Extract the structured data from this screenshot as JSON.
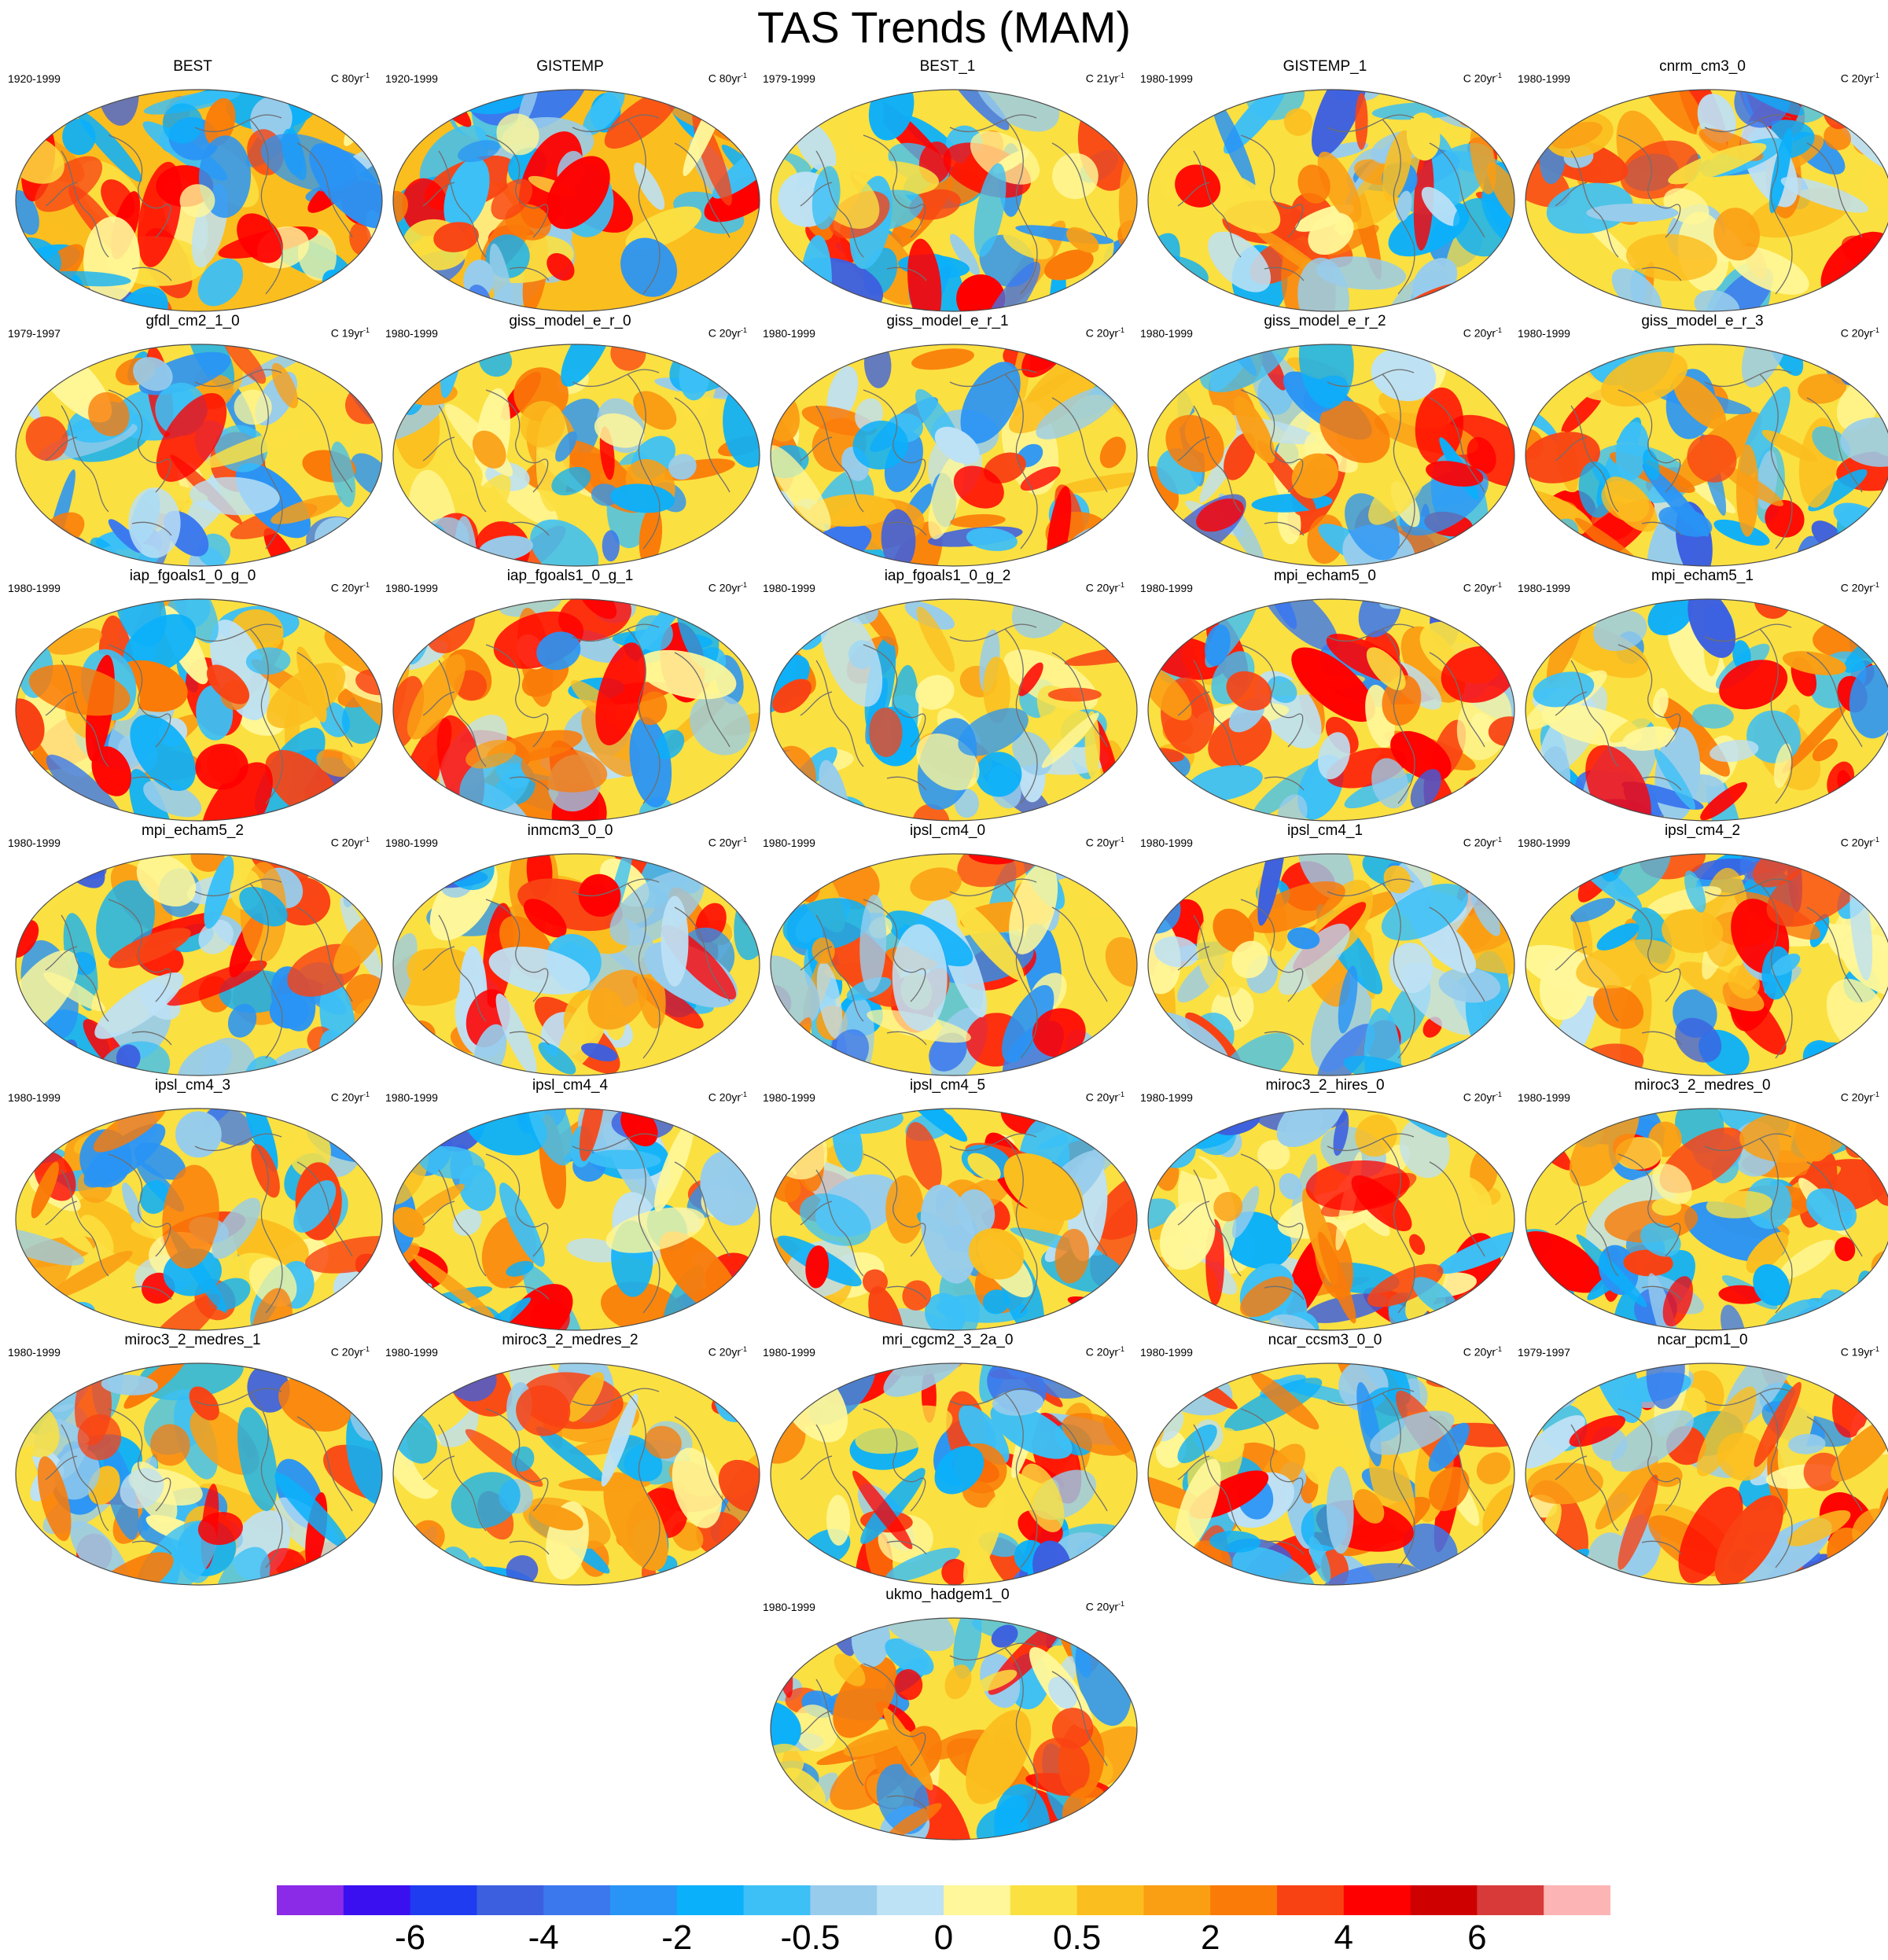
{
  "title": "TAS Trends (MAM)",
  "chart_data": {
    "type": "heatmap",
    "projection": "Robinson-like global map (Pacific-centered)",
    "panels": [
      {
        "name": "BEST",
        "period": "1920-1999",
        "units": "C 80yr",
        "units_exp": "-1"
      },
      {
        "name": "GISTEMP",
        "period": "1920-1999",
        "units": "C 80yr",
        "units_exp": "-1"
      },
      {
        "name": "BEST_1",
        "period": "1979-1999",
        "units": "C 21yr",
        "units_exp": "-1"
      },
      {
        "name": "GISTEMP_1",
        "period": "1980-1999",
        "units": "C 20yr",
        "units_exp": "-1"
      },
      {
        "name": "cnrm_cm3_0",
        "period": "1980-1999",
        "units": "C 20yr",
        "units_exp": "-1"
      },
      {
        "name": "gfdl_cm2_1_0",
        "period": "1979-1997",
        "units": "C 19yr",
        "units_exp": "-1"
      },
      {
        "name": "giss_model_e_r_0",
        "period": "1980-1999",
        "units": "C 20yr",
        "units_exp": "-1"
      },
      {
        "name": "giss_model_e_r_1",
        "period": "1980-1999",
        "units": "C 20yr",
        "units_exp": "-1"
      },
      {
        "name": "giss_model_e_r_2",
        "period": "1980-1999",
        "units": "C 20yr",
        "units_exp": "-1"
      },
      {
        "name": "giss_model_e_r_3",
        "period": "1980-1999",
        "units": "C 20yr",
        "units_exp": "-1"
      },
      {
        "name": "iap_fgoals1_0_g_0",
        "period": "1980-1999",
        "units": "C 20yr",
        "units_exp": "-1"
      },
      {
        "name": "iap_fgoals1_0_g_1",
        "period": "1980-1999",
        "units": "C 20yr",
        "units_exp": "-1"
      },
      {
        "name": "iap_fgoals1_0_g_2",
        "period": "1980-1999",
        "units": "C 20yr",
        "units_exp": "-1"
      },
      {
        "name": "mpi_echam5_0",
        "period": "1980-1999",
        "units": "C 20yr",
        "units_exp": "-1"
      },
      {
        "name": "mpi_echam5_1",
        "period": "1980-1999",
        "units": "C 20yr",
        "units_exp": "-1"
      },
      {
        "name": "mpi_echam5_2",
        "period": "1980-1999",
        "units": "C 20yr",
        "units_exp": "-1"
      },
      {
        "name": "inmcm3_0_0",
        "period": "1980-1999",
        "units": "C 20yr",
        "units_exp": "-1"
      },
      {
        "name": "ipsl_cm4_0",
        "period": "1980-1999",
        "units": "C 20yr",
        "units_exp": "-1"
      },
      {
        "name": "ipsl_cm4_1",
        "period": "1980-1999",
        "units": "C 20yr",
        "units_exp": "-1"
      },
      {
        "name": "ipsl_cm4_2",
        "period": "1980-1999",
        "units": "C 20yr",
        "units_exp": "-1"
      },
      {
        "name": "ipsl_cm4_3",
        "period": "1980-1999",
        "units": "C 20yr",
        "units_exp": "-1"
      },
      {
        "name": "ipsl_cm4_4",
        "period": "1980-1999",
        "units": "C 20yr",
        "units_exp": "-1"
      },
      {
        "name": "ipsl_cm4_5",
        "period": "1980-1999",
        "units": "C 20yr",
        "units_exp": "-1"
      },
      {
        "name": "miroc3_2_hires_0",
        "period": "1980-1999",
        "units": "C 20yr",
        "units_exp": "-1"
      },
      {
        "name": "miroc3_2_medres_0",
        "period": "1980-1999",
        "units": "C 20yr",
        "units_exp": "-1"
      },
      {
        "name": "miroc3_2_medres_1",
        "period": "1980-1999",
        "units": "C 20yr",
        "units_exp": "-1"
      },
      {
        "name": "miroc3_2_medres_2",
        "period": "1980-1999",
        "units": "C 20yr",
        "units_exp": "-1"
      },
      {
        "name": "mri_cgcm2_3_2a_0",
        "period": "1980-1999",
        "units": "C 20yr",
        "units_exp": "-1"
      },
      {
        "name": "ncar_ccsm3_0_0",
        "period": "1980-1999",
        "units": "C 20yr",
        "units_exp": "-1"
      },
      {
        "name": "ncar_pcm1_0",
        "period": "1979-1997",
        "units": "C 19yr",
        "units_exp": "-1"
      },
      {
        "name": "ukmo_hadgem1_0",
        "period": "1980-1999",
        "units": "C 20yr",
        "units_exp": "-1"
      }
    ],
    "colorbar": {
      "colors": [
        "#8b2be8",
        "#3a10f0",
        "#1f3cf0",
        "#3c5fe0",
        "#3b78ee",
        "#2994f5",
        "#0bb0fa",
        "#3cc0f6",
        "#97ccec",
        "#bde1f5",
        "#fff799",
        "#fbe041",
        "#fbbe1f",
        "#fa9e14",
        "#fa7b08",
        "#f94213",
        "#ff0000",
        "#cf0000",
        "#d83a3a",
        "#fdb4b4"
      ],
      "labels": [
        "-6",
        "-4",
        "-2",
        "-0.5",
        "0",
        "0.5",
        "2",
        "4",
        "6"
      ]
    }
  }
}
